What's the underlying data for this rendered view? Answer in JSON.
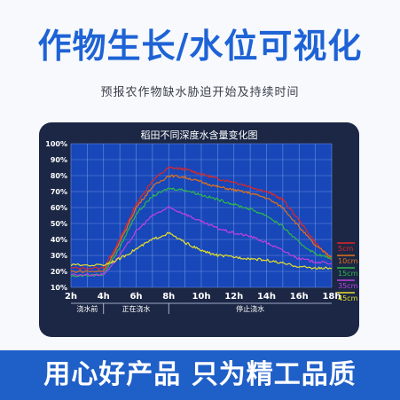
{
  "header": {
    "title": "作物生长/水位可视化",
    "subtitle": "预报农作物缺水胁迫开始及持续时间"
  },
  "footer": {
    "slogan": "用心好产品 只为精工品质"
  },
  "chart_data": {
    "type": "line",
    "title": "稻田不同深度水含量变化图",
    "xlabel": "",
    "ylabel": "",
    "x_ticks": [
      "2h",
      "4h",
      "6h",
      "8h",
      "10h",
      "12h",
      "14h",
      "16h",
      "18h"
    ],
    "y_ticks": [
      "10%",
      "20%",
      "30%",
      "40%",
      "50%",
      "60%",
      "70%",
      "80%",
      "90%",
      "100%"
    ],
    "xlim": [
      2,
      18
    ],
    "ylim": [
      10,
      100
    ],
    "grid": true,
    "legend_position": "right",
    "phases": [
      {
        "label": "浇水前",
        "start": 2,
        "end": 4
      },
      {
        "label": "正在浇水",
        "start": 4,
        "end": 8
      },
      {
        "label": "停止浇水",
        "start": 8,
        "end": 18
      }
    ],
    "series": [
      {
        "name": "5cm",
        "color": "#e02626",
        "x": [
          2,
          4,
          5,
          6,
          7,
          8,
          9,
          10,
          11,
          12,
          13,
          14,
          15,
          16,
          17,
          18
        ],
        "y": [
          22,
          22,
          40,
          62,
          77,
          85,
          84,
          81,
          78,
          76,
          73,
          70,
          65,
          52,
          38,
          27
        ]
      },
      {
        "name": "10cm",
        "color": "#e0701c",
        "x": [
          2,
          4,
          5,
          6,
          7,
          8,
          9,
          10,
          11,
          12,
          13,
          14,
          15,
          16,
          17,
          18
        ],
        "y": [
          20,
          20,
          38,
          60,
          73,
          80,
          79,
          76,
          73,
          71,
          69,
          66,
          60,
          48,
          36,
          29
        ]
      },
      {
        "name": "15cm",
        "color": "#2fb84a",
        "x": [
          2,
          4,
          5,
          6,
          7,
          8,
          9,
          10,
          11,
          12,
          13,
          14,
          15,
          16,
          17,
          18
        ],
        "y": [
          17,
          18,
          35,
          56,
          67,
          72,
          71,
          68,
          65,
          62,
          59,
          55,
          48,
          38,
          31,
          28
        ]
      },
      {
        "name": "35cm",
        "color": "#c040e0",
        "x": [
          2,
          4,
          5,
          6,
          7,
          8,
          9,
          10,
          11,
          12,
          13,
          14,
          15,
          16,
          17,
          18
        ],
        "y": [
          18,
          18,
          30,
          45,
          55,
          60,
          56,
          51,
          47,
          44,
          42,
          38,
          33,
          28,
          26,
          25
        ]
      },
      {
        "name": "45cm",
        "color": "#e8e028",
        "x": [
          2,
          4,
          5,
          6,
          7,
          8,
          9,
          10,
          11,
          12,
          13,
          14,
          15,
          16,
          17,
          18
        ],
        "y": [
          24,
          24,
          28,
          34,
          40,
          44,
          38,
          33,
          30,
          29,
          28,
          27,
          25,
          23,
          22,
          22
        ]
      }
    ]
  }
}
